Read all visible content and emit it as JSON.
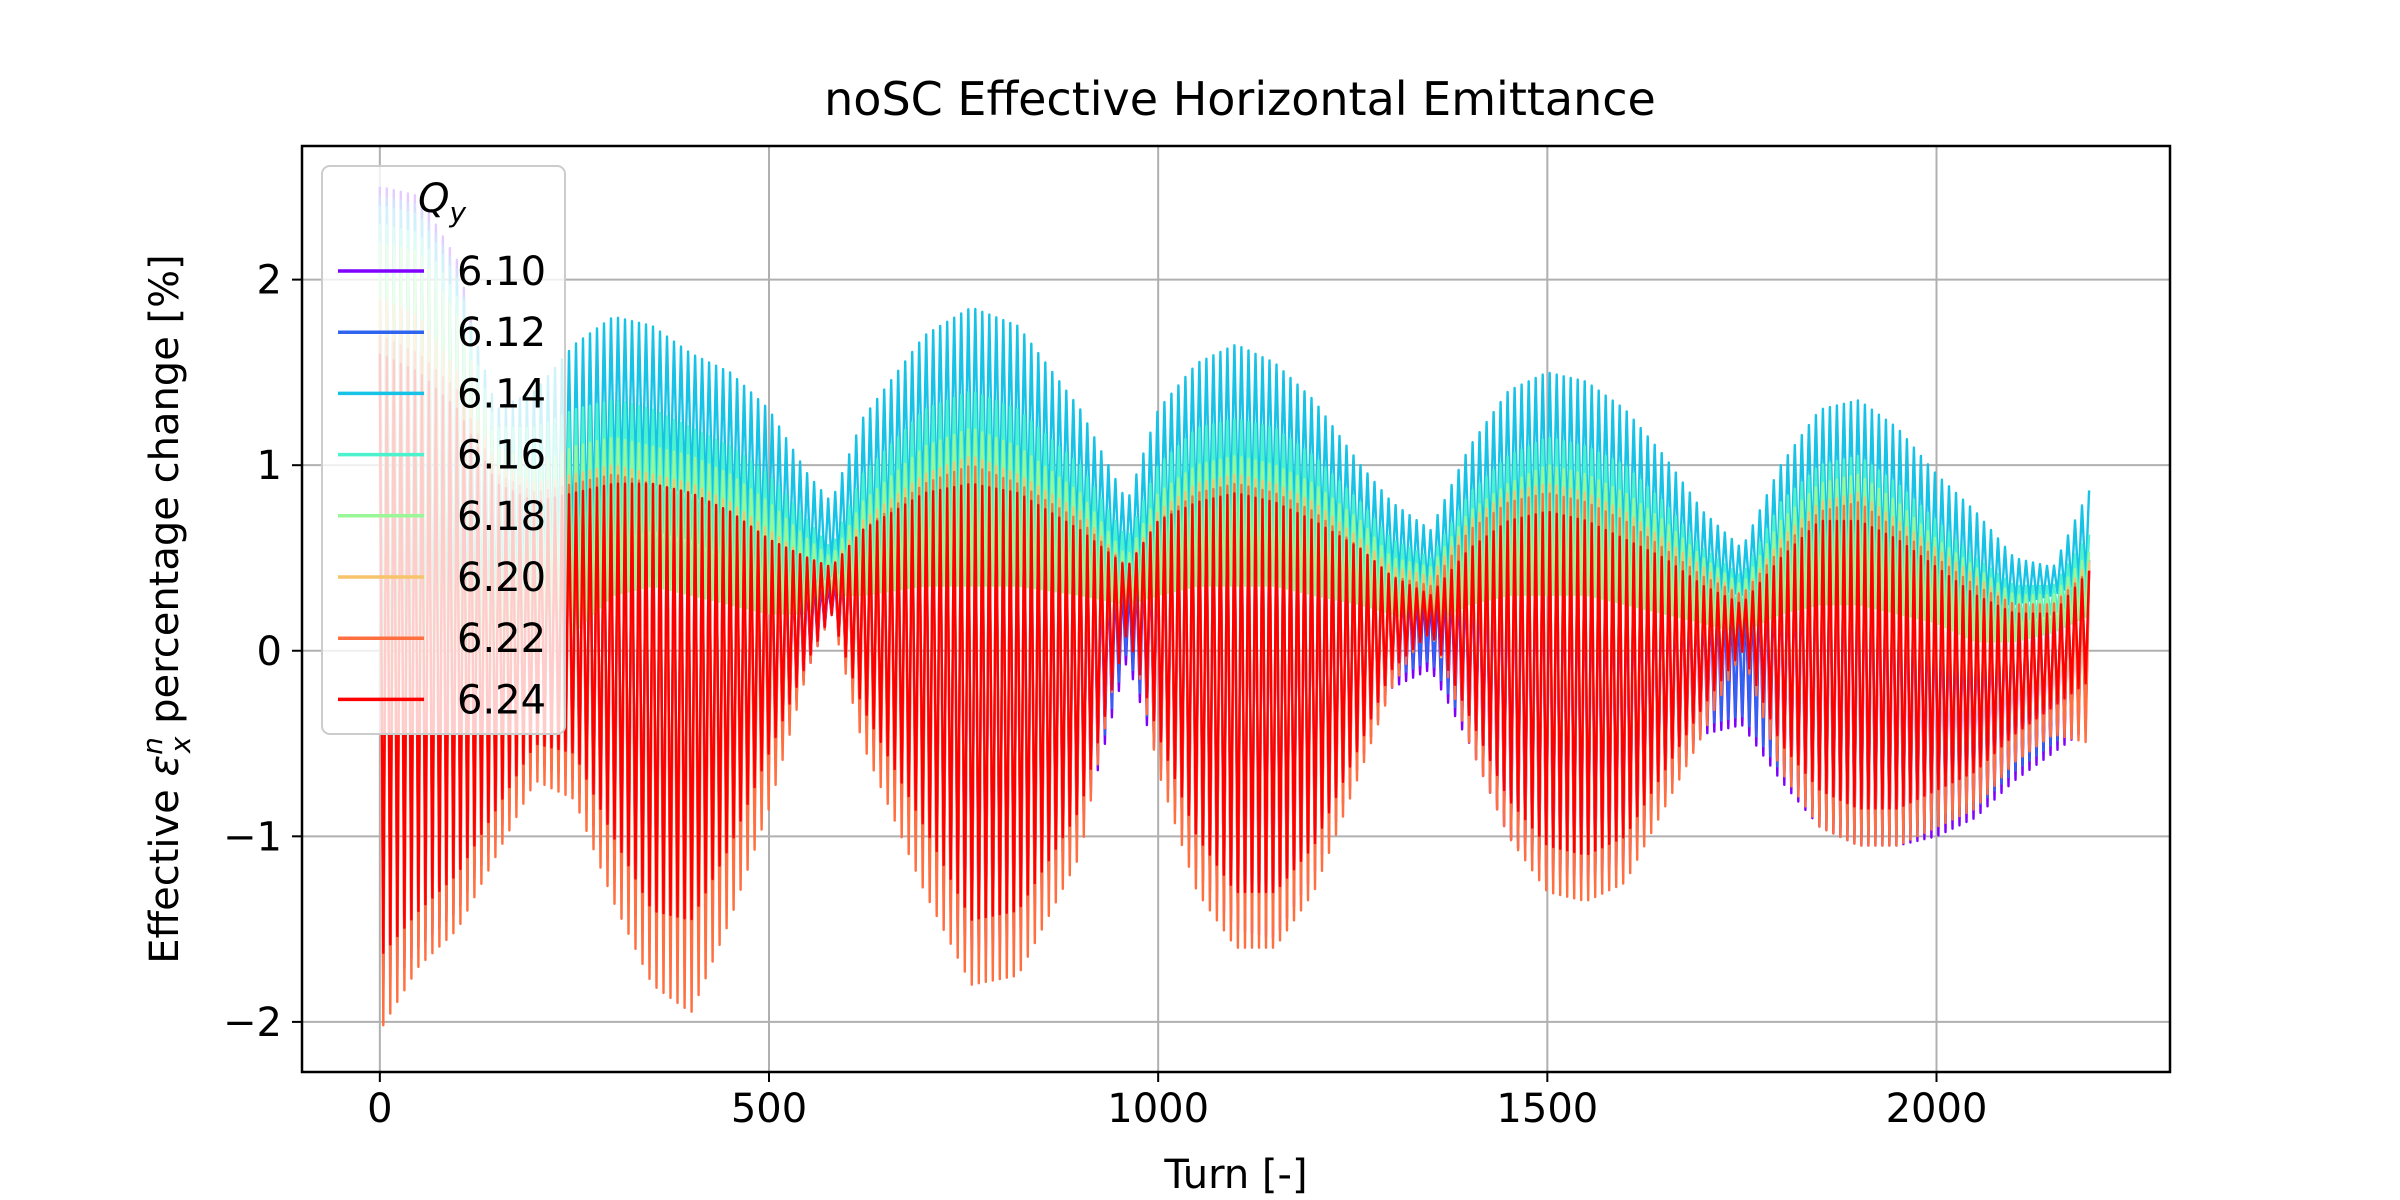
{
  "chart_data": {
    "type": "line",
    "title": "noSC Effective Horizontal Emittance",
    "xlabel": "Turn [-]",
    "ylabel_prefix": "Effective ",
    "ylabel_symbol": "ε",
    "ylabel_sub": "x",
    "ylabel_sup": "n",
    "ylabel_suffix": " percentage change [%]",
    "xlim": [
      -100,
      2300
    ],
    "ylim": [
      -2.27,
      2.72
    ],
    "xticks": [
      0,
      500,
      1000,
      1500,
      2000
    ],
    "xtick_labels": [
      "0",
      "500",
      "1000",
      "1500",
      "2000"
    ],
    "yticks": [
      -2,
      -1,
      0,
      1,
      2
    ],
    "ytick_labels": [
      "−2",
      "−1",
      "0",
      "1",
      "2"
    ],
    "grid": true,
    "legend": {
      "title_symbol": "Q",
      "title_sub": "y",
      "placement": "top-left"
    },
    "series": [
      {
        "name": "6.10",
        "color": "#7f00ff",
        "x": [
          0,
          50,
          100,
          150,
          200,
          250,
          300,
          350,
          400,
          450,
          500,
          550,
          580,
          620,
          700,
          760,
          820,
          900,
          960,
          1000,
          1050,
          1100,
          1150,
          1200,
          1260,
          1300,
          1350,
          1400,
          1450,
          1500,
          1550,
          1600,
          1650,
          1700,
          1750,
          1800,
          1850,
          1900,
          1950,
          2000,
          2050,
          2100,
          2150,
          2200
        ],
        "upper": [
          2.5,
          2.45,
          2.1,
          1.2,
          0.9,
          0.9,
          0.88,
          0.85,
          0.8,
          0.65,
          0.5,
          0.4,
          0.35,
          0.6,
          0.85,
          0.9,
          0.85,
          0.6,
          0.35,
          0.6,
          0.8,
          0.85,
          0.8,
          0.7,
          0.55,
          0.4,
          0.3,
          0.5,
          0.65,
          0.7,
          0.65,
          0.55,
          0.45,
          0.3,
          0.25,
          0.5,
          0.65,
          0.65,
          0.5,
          0.35,
          0.25,
          0.25,
          0.3,
          0.45
        ],
        "lower": [
          -1.9,
          -1.6,
          -1.4,
          -1.0,
          -0.6,
          -0.7,
          -1.2,
          -1.6,
          -1.6,
          -1.2,
          -0.7,
          -0.1,
          0.2,
          -0.4,
          -1.1,
          -1.7,
          -1.6,
          -1.0,
          -0.05,
          -0.6,
          -1.2,
          -1.5,
          -1.55,
          -1.2,
          -0.6,
          -0.2,
          -0.1,
          -0.5,
          -1.0,
          -1.25,
          -1.3,
          -1.2,
          -0.8,
          -0.45,
          -0.4,
          -0.7,
          -0.95,
          -1.05,
          -1.05,
          -1.0,
          -0.9,
          -0.7,
          -0.55,
          -0.4
        ]
      },
      {
        "name": "6.12",
        "color": "#2e64f0",
        "x": [
          0,
          50,
          100,
          150,
          200,
          250,
          300,
          350,
          400,
          450,
          500,
          550,
          580,
          620,
          700,
          760,
          820,
          900,
          960,
          1000,
          1050,
          1100,
          1150,
          1200,
          1260,
          1300,
          1350,
          1400,
          1450,
          1500,
          1550,
          1600,
          1650,
          1700,
          1750,
          1800,
          1850,
          1900,
          1950,
          2000,
          2050,
          2100,
          2150,
          2200
        ],
        "upper": [
          2.45,
          2.4,
          2.05,
          1.2,
          0.95,
          1.0,
          1.0,
          0.95,
          0.9,
          0.75,
          0.6,
          0.45,
          0.4,
          0.7,
          0.95,
          1.0,
          0.95,
          0.7,
          0.4,
          0.7,
          0.9,
          0.95,
          0.9,
          0.8,
          0.6,
          0.45,
          0.35,
          0.6,
          0.75,
          0.8,
          0.75,
          0.65,
          0.5,
          0.35,
          0.3,
          0.6,
          0.75,
          0.75,
          0.6,
          0.4,
          0.3,
          0.3,
          0.35,
          0.5
        ],
        "lower": [
          -1.85,
          -1.55,
          -1.35,
          -0.95,
          -0.55,
          -0.65,
          -1.15,
          -1.55,
          -1.55,
          -1.15,
          -0.65,
          -0.05,
          0.2,
          -0.35,
          -1.05,
          -1.65,
          -1.55,
          -0.95,
          0.0,
          -0.55,
          -1.15,
          -1.45,
          -1.5,
          -1.15,
          -0.55,
          -0.15,
          -0.05,
          -0.45,
          -0.95,
          -1.2,
          -1.25,
          -1.15,
          -0.75,
          -0.4,
          -0.35,
          -0.65,
          -0.9,
          -1.0,
          -1.0,
          -0.95,
          -0.85,
          -0.65,
          -0.5,
          -0.35
        ]
      },
      {
        "name": "6.14",
        "color": "#16c3e6",
        "x": [
          0,
          50,
          100,
          150,
          200,
          250,
          300,
          350,
          400,
          450,
          500,
          550,
          580,
          620,
          700,
          760,
          820,
          900,
          960,
          1000,
          1050,
          1100,
          1150,
          1200,
          1260,
          1300,
          1350,
          1400,
          1450,
          1500,
          1550,
          1600,
          1650,
          1700,
          1750,
          1800,
          1850,
          1900,
          1950,
          2000,
          2050,
          2100,
          2150,
          2200
        ],
        "upper": [
          2.4,
          2.35,
          2.0,
          1.3,
          1.4,
          1.65,
          1.8,
          1.75,
          1.6,
          1.5,
          1.3,
          0.95,
          0.8,
          1.25,
          1.7,
          1.85,
          1.75,
          1.3,
          0.8,
          1.3,
          1.55,
          1.65,
          1.55,
          1.35,
          1.0,
          0.8,
          0.65,
          1.1,
          1.4,
          1.5,
          1.45,
          1.3,
          1.05,
          0.75,
          0.55,
          1.0,
          1.3,
          1.35,
          1.2,
          0.95,
          0.75,
          0.5,
          0.45,
          0.9
        ],
        "lower": [
          -1.0,
          -0.6,
          -0.2,
          0.1,
          0.3,
          0.5,
          0.85,
          0.9,
          0.85,
          0.7,
          0.55,
          0.45,
          0.45,
          0.55,
          0.75,
          0.8,
          0.75,
          0.6,
          0.45,
          0.55,
          0.7,
          0.75,
          0.75,
          0.65,
          0.5,
          0.4,
          0.35,
          0.5,
          0.6,
          0.65,
          0.6,
          0.55,
          0.45,
          0.35,
          0.3,
          0.45,
          0.55,
          0.55,
          0.45,
          0.35,
          0.25,
          0.25,
          0.3,
          0.4
        ]
      },
      {
        "name": "6.16",
        "color": "#4cf2ce",
        "x": [
          0,
          50,
          100,
          150,
          200,
          250,
          300,
          350,
          400,
          450,
          500,
          550,
          580,
          620,
          700,
          760,
          820,
          900,
          960,
          1000,
          1050,
          1100,
          1150,
          1200,
          1260,
          1300,
          1350,
          1400,
          1450,
          1500,
          1550,
          1600,
          1650,
          1700,
          1750,
          1800,
          1850,
          1900,
          1950,
          2000,
          2050,
          2100,
          2150,
          2200
        ],
        "upper": [
          2.3,
          2.25,
          1.9,
          1.2,
          1.2,
          1.3,
          1.35,
          1.3,
          1.2,
          1.1,
          0.95,
          0.7,
          0.55,
          0.95,
          1.3,
          1.4,
          1.3,
          1.0,
          0.6,
          1.0,
          1.2,
          1.25,
          1.2,
          1.05,
          0.8,
          0.6,
          0.5,
          0.85,
          1.05,
          1.15,
          1.1,
          1.0,
          0.8,
          0.55,
          0.4,
          0.8,
          1.0,
          1.05,
          0.9,
          0.7,
          0.5,
          0.35,
          0.35,
          0.65
        ],
        "lower": [
          -1.2,
          -0.8,
          -0.4,
          0.0,
          0.2,
          0.35,
          0.6,
          0.65,
          0.6,
          0.5,
          0.4,
          0.35,
          0.4,
          0.45,
          0.55,
          0.6,
          0.55,
          0.45,
          0.35,
          0.4,
          0.5,
          0.55,
          0.55,
          0.5,
          0.4,
          0.3,
          0.25,
          0.35,
          0.45,
          0.5,
          0.45,
          0.4,
          0.35,
          0.25,
          0.2,
          0.35,
          0.4,
          0.4,
          0.35,
          0.25,
          0.15,
          0.15,
          0.2,
          0.3
        ]
      },
      {
        "name": "6.18",
        "color": "#99f797",
        "x": [
          0,
          50,
          100,
          150,
          200,
          250,
          300,
          350,
          400,
          450,
          500,
          550,
          580,
          620,
          700,
          760,
          820,
          900,
          960,
          1000,
          1050,
          1100,
          1150,
          1200,
          1260,
          1300,
          1350,
          1400,
          1450,
          1500,
          1550,
          1600,
          1650,
          1700,
          1750,
          1800,
          1850,
          1900,
          1950,
          2000,
          2050,
          2100,
          2150,
          2200
        ],
        "upper": [
          2.2,
          2.15,
          1.8,
          1.1,
          1.0,
          1.1,
          1.15,
          1.1,
          1.05,
          0.95,
          0.8,
          0.6,
          0.5,
          0.8,
          1.1,
          1.2,
          1.1,
          0.85,
          0.5,
          0.85,
          1.0,
          1.05,
          1.0,
          0.9,
          0.7,
          0.5,
          0.45,
          0.75,
          0.9,
          1.0,
          0.95,
          0.85,
          0.7,
          0.5,
          0.35,
          0.7,
          0.9,
          0.95,
          0.8,
          0.6,
          0.45,
          0.3,
          0.3,
          0.55
        ],
        "lower": [
          -1.4,
          -1.0,
          -0.7,
          -0.3,
          0.0,
          0.1,
          0.3,
          0.35,
          0.3,
          0.25,
          0.2,
          0.2,
          0.3,
          0.3,
          0.35,
          0.35,
          0.35,
          0.3,
          0.25,
          0.3,
          0.35,
          0.35,
          0.35,
          0.3,
          0.25,
          0.2,
          0.15,
          0.25,
          0.3,
          0.3,
          0.3,
          0.25,
          0.2,
          0.15,
          0.1,
          0.2,
          0.25,
          0.25,
          0.2,
          0.15,
          0.05,
          0.05,
          0.1,
          0.2
        ]
      },
      {
        "name": "6.20",
        "color": "#f7c36b",
        "x": [
          0,
          50,
          100,
          150,
          200,
          250,
          300,
          350,
          400,
          450,
          500,
          550,
          580,
          620,
          700,
          760,
          820,
          900,
          960,
          1000,
          1050,
          1100,
          1150,
          1200,
          1260,
          1300,
          1350,
          1400,
          1450,
          1500,
          1550,
          1600,
          1650,
          1700,
          1750,
          1800,
          1850,
          1900,
          1950,
          2000,
          2050,
          2100,
          2150,
          2200
        ],
        "upper": [
          1.9,
          1.8,
          1.5,
          1.0,
          0.9,
          0.95,
          1.0,
          0.95,
          0.9,
          0.8,
          0.65,
          0.5,
          0.45,
          0.7,
          0.95,
          1.05,
          0.95,
          0.75,
          0.45,
          0.75,
          0.9,
          0.95,
          0.9,
          0.8,
          0.6,
          0.45,
          0.4,
          0.7,
          0.85,
          0.9,
          0.85,
          0.75,
          0.6,
          0.45,
          0.3,
          0.6,
          0.8,
          0.85,
          0.7,
          0.55,
          0.4,
          0.25,
          0.25,
          0.5
        ],
        "lower": [
          -1.8,
          -1.5,
          -1.2,
          -0.9,
          -0.5,
          -0.6,
          -1.1,
          -1.55,
          -1.55,
          -1.15,
          -0.65,
          -0.05,
          0.2,
          -0.35,
          -1.05,
          -1.6,
          -1.55,
          -0.95,
          0.15,
          -0.5,
          -1.1,
          -1.45,
          -1.5,
          -1.15,
          -0.55,
          -0.1,
          0.1,
          -0.4,
          -0.9,
          -1.2,
          -1.25,
          -1.15,
          -0.75,
          -0.35,
          0.0,
          -0.6,
          -0.85,
          -0.95,
          -0.95,
          -0.9,
          -0.8,
          -0.6,
          -0.45,
          -0.35
        ]
      },
      {
        "name": "6.22",
        "color": "#ff6f3f",
        "x": [
          0,
          50,
          100,
          150,
          200,
          250,
          300,
          350,
          400,
          450,
          500,
          550,
          580,
          620,
          700,
          760,
          820,
          900,
          960,
          1000,
          1050,
          1100,
          1150,
          1200,
          1260,
          1300,
          1350,
          1400,
          1450,
          1500,
          1550,
          1600,
          1650,
          1700,
          1750,
          1800,
          1850,
          1900,
          1950,
          2000,
          2050,
          2100,
          2150,
          2200
        ],
        "upper": [
          1.7,
          1.6,
          1.4,
          0.95,
          0.85,
          0.9,
          0.95,
          0.9,
          0.85,
          0.75,
          0.6,
          0.5,
          0.45,
          0.65,
          0.9,
          1.0,
          0.9,
          0.7,
          0.45,
          0.7,
          0.85,
          0.9,
          0.85,
          0.75,
          0.55,
          0.4,
          0.35,
          0.65,
          0.8,
          0.85,
          0.8,
          0.7,
          0.55,
          0.4,
          0.3,
          0.55,
          0.75,
          0.8,
          0.65,
          0.5,
          0.35,
          0.25,
          0.25,
          0.45
        ],
        "lower": [
          -2.05,
          -1.7,
          -1.5,
          -1.1,
          -0.7,
          -0.8,
          -1.35,
          -1.8,
          -1.95,
          -1.45,
          -0.85,
          -0.1,
          0.2,
          -0.5,
          -1.3,
          -1.8,
          -1.75,
          -1.1,
          0.2,
          -0.65,
          -1.3,
          -1.6,
          -1.6,
          -1.3,
          -0.65,
          -0.2,
          0.15,
          -0.5,
          -1.0,
          -1.3,
          -1.35,
          -1.25,
          -0.85,
          -0.45,
          0.0,
          -0.65,
          -0.95,
          -1.05,
          -1.05,
          -0.95,
          -0.85,
          -0.6,
          -0.45,
          -0.5
        ]
      },
      {
        "name": "6.24",
        "color": "#ff0000",
        "x": [
          0,
          50,
          100,
          150,
          200,
          250,
          300,
          350,
          400,
          450,
          500,
          550,
          580,
          620,
          700,
          760,
          820,
          900,
          960,
          1000,
          1050,
          1100,
          1150,
          1200,
          1260,
          1300,
          1350,
          1400,
          1450,
          1500,
          1550,
          1600,
          1650,
          1700,
          1750,
          1800,
          1850,
          1900,
          1950,
          2000,
          2050,
          2100,
          2150,
          2200
        ],
        "upper": [
          1.6,
          1.5,
          1.3,
          0.9,
          0.8,
          0.85,
          0.9,
          0.9,
          0.85,
          0.75,
          0.6,
          0.5,
          0.45,
          0.65,
          0.85,
          0.9,
          0.85,
          0.65,
          0.45,
          0.7,
          0.8,
          0.85,
          0.8,
          0.7,
          0.55,
          0.4,
          0.3,
          0.55,
          0.7,
          0.75,
          0.7,
          0.6,
          0.5,
          0.35,
          0.25,
          0.5,
          0.7,
          0.7,
          0.6,
          0.45,
          0.3,
          0.2,
          0.2,
          0.45
        ],
        "lower": [
          -1.65,
          -1.4,
          -1.2,
          -0.85,
          -0.5,
          -0.55,
          -1.0,
          -1.4,
          -1.45,
          -1.05,
          -0.55,
          -0.05,
          0.2,
          -0.3,
          -0.95,
          -1.45,
          -1.4,
          -0.85,
          0.1,
          -0.45,
          -1.0,
          -1.3,
          -1.3,
          -1.05,
          -0.5,
          -0.1,
          0.1,
          -0.35,
          -0.8,
          -1.05,
          -1.1,
          -1.0,
          -0.65,
          -0.3,
          0.0,
          -0.5,
          -0.75,
          -0.85,
          -0.85,
          -0.75,
          -0.65,
          -0.45,
          -0.3,
          -0.15
        ]
      }
    ]
  }
}
